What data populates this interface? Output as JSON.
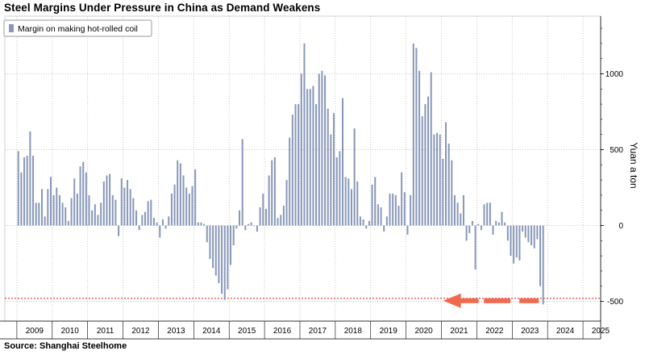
{
  "chart_data": {
    "type": "bar",
    "title": "Steel Margins Under Pressure in China as Demand Weakens",
    "source": "Source: Shanghai Steelhome",
    "ylabel": "Yuan a ton",
    "ylim": [
      -630,
      1380
    ],
    "yticks": [
      -500,
      0,
      500,
      1000
    ],
    "reference_line": -480,
    "colors": {
      "bar": "#8898b8",
      "refline": "#e02020",
      "arrow": "#f06a50",
      "grid": "#b8b8b8"
    },
    "series": [
      {
        "name": "Margin on making hot-rolled coil",
        "start_year": 2009,
        "values": [
          490,
          350,
          450,
          460,
          620,
          460,
          150,
          150,
          240,
          60,
          240,
          320,
          200,
          250,
          200,
          150,
          120,
          30,
          180,
          310,
          210,
          390,
          420,
          350,
          200,
          100,
          140,
          70,
          150,
          290,
          330,
          340,
          200,
          170,
          -70,
          310,
          250,
          300,
          240,
          180,
          100,
          -30,
          70,
          90,
          160,
          170,
          50,
          20,
          -80,
          40,
          -20,
          60,
          210,
          270,
          430,
          410,
          330,
          250,
          210,
          260,
          370,
          20,
          20,
          10,
          -110,
          -220,
          -280,
          -330,
          -380,
          -450,
          -490,
          -420,
          -260,
          -130,
          -20,
          100,
          570,
          -30,
          10,
          20,
          0,
          -40,
          120,
          210,
          110,
          330,
          430,
          450,
          50,
          70,
          130,
          300,
          580,
          730,
          800,
          800,
          1000,
          1200,
          900,
          900,
          920,
          800,
          1000,
          1020,
          990,
          770,
          600,
          740,
          450,
          490,
          840,
          320,
          310,
          240,
          640,
          290,
          60,
          40,
          -20,
          30,
          270,
          320,
          140,
          120,
          -40,
          60,
          210,
          210,
          200,
          130,
          350,
          220,
          -60,
          200,
          1200,
          1170,
          1020,
          720,
          800,
          850,
          1010,
          600,
          610,
          600,
          440,
          680,
          540,
          430,
          200,
          150,
          80,
          200,
          -100,
          -50,
          30,
          -290,
          10,
          -30,
          140,
          150,
          150,
          -60,
          30,
          20,
          90,
          20,
          -100,
          -200,
          -250,
          -210,
          -230,
          -40,
          -80,
          -110,
          -130,
          -150,
          -90,
          -400,
          -520
        ]
      }
    ],
    "x_ticks": [
      "2009",
      "2010",
      "2011",
      "2012",
      "2013",
      "2014",
      "2015",
      "2016",
      "2017",
      "2018",
      "2019",
      "2020",
      "2021",
      "2022",
      "2023",
      "2024",
      "2025"
    ],
    "xlim_years": [
      2008.66,
      2025.5
    ],
    "legend": "top-left",
    "grid": true
  }
}
